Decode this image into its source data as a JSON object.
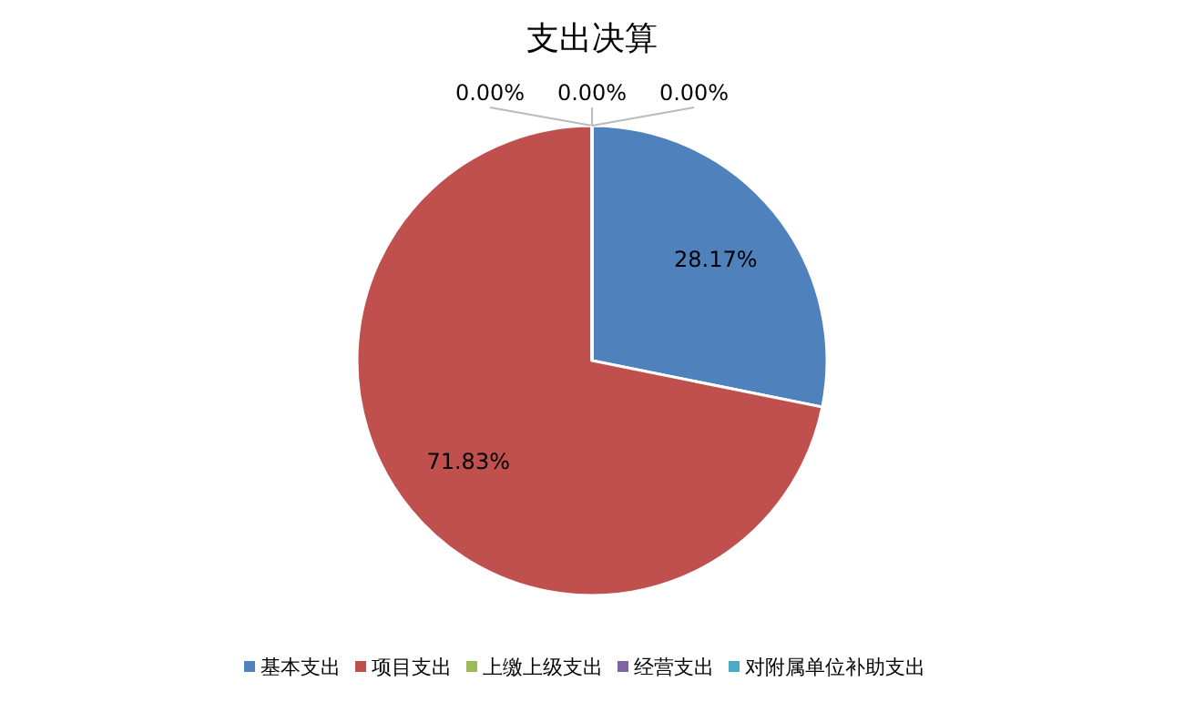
{
  "chart_data": {
    "type": "pie",
    "title": "支出决算",
    "categories": [
      "基本支出",
      "项目支出",
      "上缴上级支出",
      "经营支出",
      "对附属单位补助支出"
    ],
    "values": [
      28.17,
      71.83,
      0,
      0,
      0
    ],
    "colors": [
      "#4f81bd",
      "#c0504d",
      "#9bbb59",
      "#8064a2",
      "#4bacc6"
    ],
    "value_labels": [
      "28.17%",
      "71.83%",
      "0.00%",
      "0.00%",
      "0.00%"
    ],
    "legend": "bottom"
  }
}
